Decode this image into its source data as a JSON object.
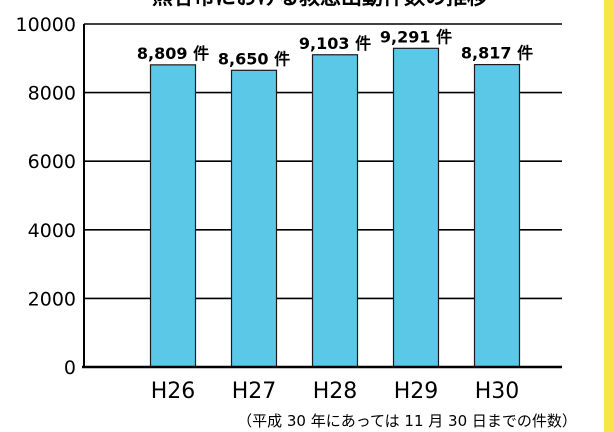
{
  "chart_data": {
    "type": "bar",
    "title": "熊谷市における救急出動件数の推移",
    "categories": [
      "H26",
      "H27",
      "H28",
      "H29",
      "H30"
    ],
    "values": [
      8809,
      8650,
      9103,
      9291,
      8817
    ],
    "data_labels": [
      "8,809 件",
      "8,650 件",
      "9,103 件",
      "9,291 件",
      "8,817 件"
    ],
    "ylim": [
      0,
      10000
    ],
    "yticks": [
      0,
      2000,
      4000,
      6000,
      8000,
      10000
    ],
    "grid": "horizontal",
    "note": "（平成 30 年にあっては 11 月 30 日までの件数）",
    "colors": {
      "bar": "#5ac8e6",
      "bar_edge": "#1a1a1a",
      "axis": "#000000",
      "accent_stripe": "#f7e54a"
    }
  }
}
